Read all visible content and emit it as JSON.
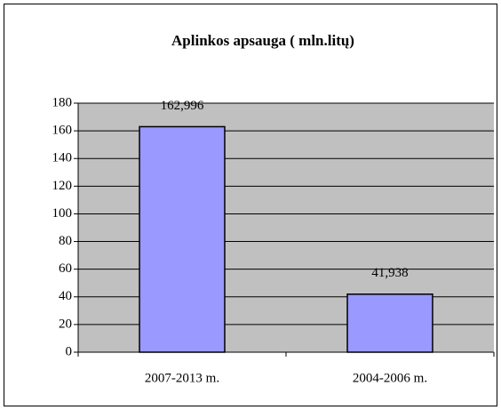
{
  "chart_data": {
    "type": "bar",
    "title": "Aplinkos apsauga ( mln.litų)",
    "categories": [
      "2007-2013 m.",
      "2004-2006 m."
    ],
    "values": [
      162.996,
      41.938
    ],
    "value_labels": [
      "162,996",
      "41,938"
    ],
    "color": "#9999ff",
    "ylim": [
      0,
      180
    ],
    "yticks": [
      0,
      20,
      40,
      60,
      80,
      100,
      120,
      140,
      160,
      180
    ],
    "grid": true
  }
}
